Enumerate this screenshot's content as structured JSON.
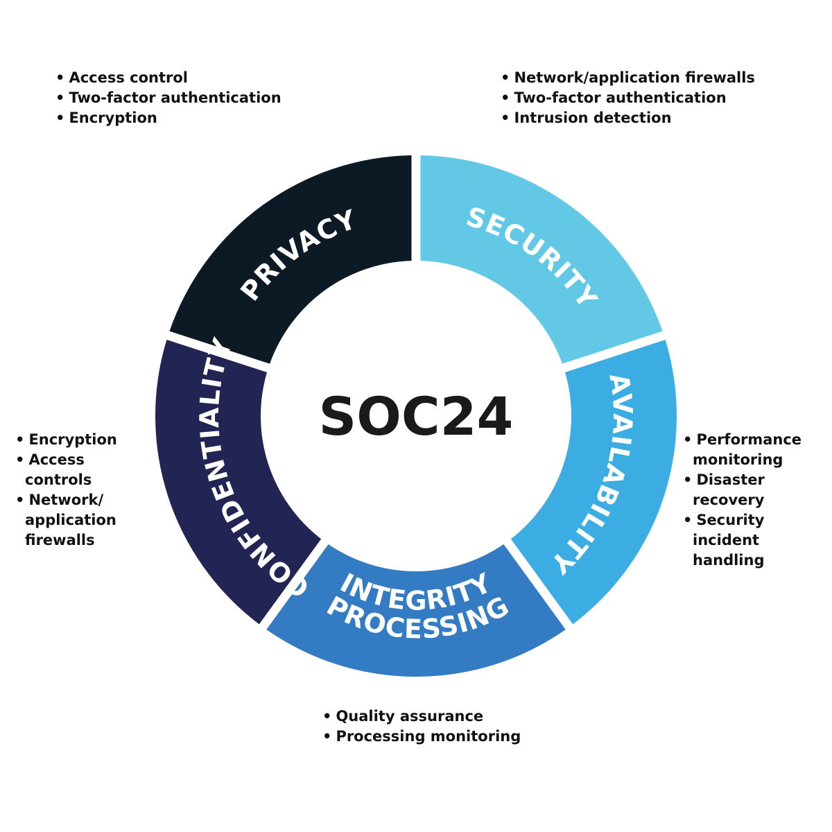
{
  "center_title": "SOC24",
  "segments": [
    {
      "id": "privacy",
      "label": "PRIVACY",
      "color": "#0c1a26",
      "bullets": [
        "Access control",
        "Two-factor authentication",
        "Encryption"
      ]
    },
    {
      "id": "security",
      "label": "SECURITY",
      "color": "#63c7e6",
      "bullets": [
        "Network/application firewalls",
        "Two-factor authentication",
        "Intrusion detection"
      ]
    },
    {
      "id": "availability",
      "label": "AVAILABILITY",
      "color": "#3bade3",
      "bullets": [
        "Performance monitoring",
        "Disaster recovery",
        "Security incident handling"
      ]
    },
    {
      "id": "processing-integrity",
      "label": "PROCESSING INTEGRITY",
      "label_lines": [
        "PROCESSING",
        "INTEGRITY"
      ],
      "color": "#337bc2",
      "bullets": [
        "Quality assurance",
        "Processing monitoring"
      ]
    },
    {
      "id": "confidentiality",
      "label": "CONFIDENTIALITY",
      "color": "#222454",
      "bullets": [
        "Encryption",
        "Access controls",
        "Network/ application firewalls"
      ]
    }
  ]
}
